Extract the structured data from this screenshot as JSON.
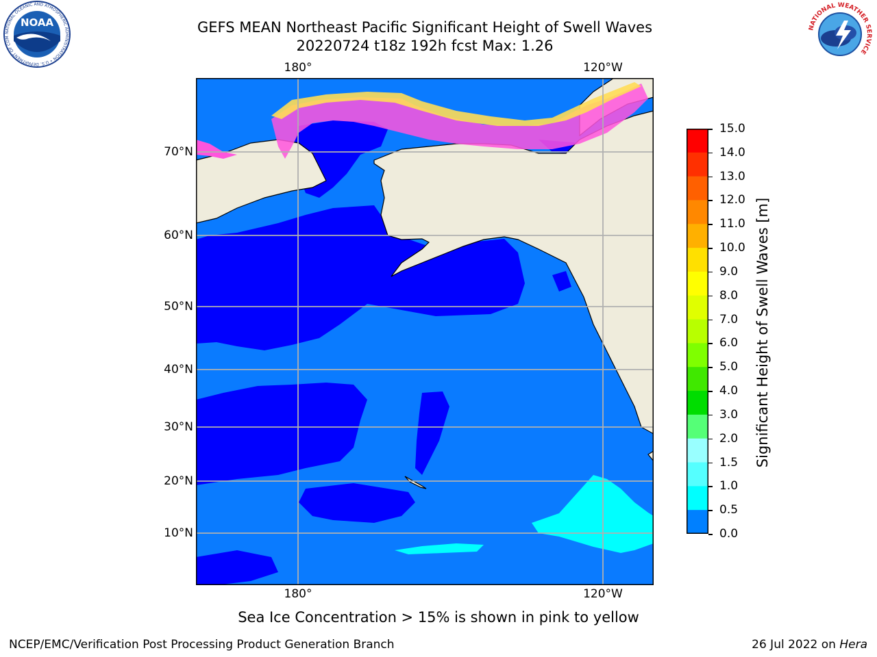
{
  "title_line1": "GEFS MEAN Northeast Pacific Significant Height of Swell Waves",
  "title_line2": "20220724 t18z 192h fcst   Max: 1.26",
  "map": {
    "lat_ticks": [
      "70°N",
      "60°N",
      "50°N",
      "40°N",
      "30°N",
      "20°N",
      "10°N"
    ],
    "lon_ticks_top": [
      "180°",
      "120°W"
    ],
    "lon_ticks_bottom": [
      "180°",
      "120°W"
    ],
    "colors": {
      "land": "#efecdc",
      "ocean_dark": "#0000ff",
      "ocean_mid": "#0a7bff",
      "ocean_cyan": "#00ffff",
      "ice_pink": "#ff55dd",
      "ice_yellow": "#ffdd55",
      "grid": "#b0b0b0"
    }
  },
  "colorbar": {
    "label": "Significant Height of Swell Waves [m]",
    "ticks": [
      "15.0",
      "14.0",
      "13.0",
      "12.0",
      "11.0",
      "10.0",
      "9.0",
      "8.0",
      "7.0",
      "6.0",
      "5.0",
      "4.0",
      "3.0",
      "2.0",
      "1.5",
      "1.0",
      "0.5",
      "0.0"
    ],
    "colors": [
      "#ff0000",
      "#ff3000",
      "#ff6000",
      "#ff8800",
      "#ffb000",
      "#ffe000",
      "#ffff00",
      "#e0ff00",
      "#b8ff00",
      "#7fff00",
      "#40e800",
      "#00dd00",
      "#55ff77",
      "#99ffff",
      "#55ffff",
      "#00ffff",
      "#0080ff",
      "#0000ff"
    ]
  },
  "caption": "Sea Ice Concentration > 15% is shown in pink to yellow",
  "footer": {
    "left": "NCEP/EMC/Verification Post Processing Product Generation Branch",
    "date": "26 Jul 2022 on",
    "host": "Hera"
  },
  "logos": {
    "noaa_text": "NOAA",
    "noaa_ring": "NATIONAL OCEANIC AND ATMOSPHERIC ADMINISTRATION • U.S. DEPARTMENT OF COMMERCE",
    "nws_ring": "NATIONAL WEATHER SERVICE"
  }
}
